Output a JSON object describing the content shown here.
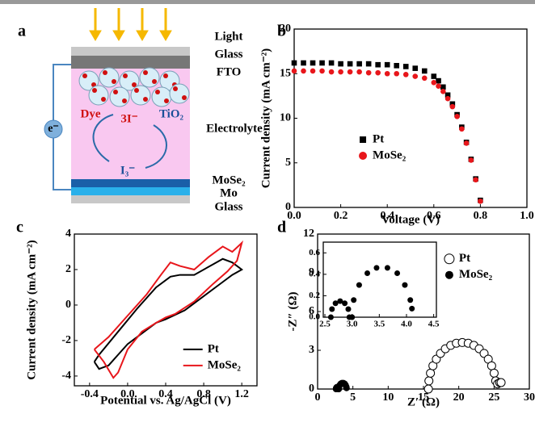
{
  "diagram": {
    "panel_label": "a",
    "light": "Light",
    "glass_top": "Glass",
    "fto": "FTO",
    "dye": "Dye",
    "iodide": "3I⁻",
    "tio2": "TiO₂",
    "electrolyte": "Electrolyte",
    "electron": "e⁻",
    "triiodide": "I₃⁻",
    "mose2": "MoSe₂",
    "mo": "Mo",
    "glass_bottom": "Glass"
  },
  "chart_data": [
    {
      "type": "scatter",
      "panel_label": "b",
      "x_label": "Voltage (V)",
      "y_label": "Current density (mA cm⁻²)",
      "xlim": [
        0,
        1
      ],
      "xticks": [
        {
          "value": 0,
          "label": "0.0"
        },
        0.2,
        0.4,
        0.6,
        0.8,
        {
          "value": 1,
          "label": "1.0"
        }
      ],
      "ylim": [
        0,
        20
      ],
      "yticks": [
        0,
        5,
        10,
        15,
        20
      ],
      "legend": "center left",
      "x": [
        0,
        0.04,
        0.08,
        0.12,
        0.16,
        0.2,
        0.24,
        0.28,
        0.32,
        0.36,
        0.4,
        0.44,
        0.48,
        0.52,
        0.56,
        0.6,
        0.62,
        0.64,
        0.66,
        0.68,
        0.7,
        0.72,
        0.74,
        0.76,
        0.78,
        0.8
      ],
      "series": [
        {
          "name": "Pt",
          "color": "#000000",
          "marker": "square",
          "values": [
            16.2,
            16.2,
            16.2,
            16.2,
            16.2,
            16.1,
            16.1,
            16.1,
            16.1,
            16.0,
            16.0,
            15.9,
            15.8,
            15.6,
            15.3,
            14.7,
            14.2,
            13.5,
            12.6,
            11.6,
            10.4,
            9.0,
            7.3,
            5.4,
            3.2,
            0.8
          ]
        },
        {
          "name": "MoSe₂",
          "color": "#e8161b",
          "marker": "circle",
          "values": [
            15.3,
            15.3,
            15.3,
            15.3,
            15.2,
            15.2,
            15.2,
            15.2,
            15.1,
            15.1,
            15.0,
            15.0,
            14.9,
            14.7,
            14.5,
            14.0,
            13.6,
            13.0,
            12.2,
            11.3,
            10.2,
            8.8,
            7.2,
            5.3,
            3.1,
            0.7
          ]
        }
      ]
    },
    {
      "type": "line",
      "panel_label": "c",
      "x_label": "Potential vs. Ag/AgCl (V)",
      "y_label": "Current density (mA cm⁻²)",
      "xlim": [
        -0.56,
        1.36
      ],
      "xticks": [
        -0.4,
        {
          "value": 0,
          "label": "0.0"
        },
        0.4,
        0.8,
        1.2
      ],
      "ylim": [
        -4.55,
        4
      ],
      "yticks": [
        -4,
        -2,
        0,
        2,
        4
      ],
      "legend": "lower right",
      "series": [
        {
          "name": "Pt",
          "color": "#000000",
          "x": [
            -0.35,
            -0.3,
            -0.1,
            0.1,
            0.3,
            0.45,
            0.55,
            0.7,
            0.9,
            1.0,
            1.1,
            1.2,
            1.1,
            1.0,
            0.8,
            0.6,
            0.4,
            0.3,
            0.2,
            0.0,
            -0.1,
            -0.2,
            -0.3,
            -0.35
          ],
          "values": [
            -3.2,
            -2.8,
            -1.5,
            -0.2,
            1.0,
            1.6,
            1.7,
            1.7,
            2.3,
            2.6,
            2.4,
            2.0,
            1.7,
            1.3,
            0.5,
            -0.3,
            -0.8,
            -1.0,
            -1.4,
            -2.2,
            -2.8,
            -3.4,
            -3.6,
            -3.2
          ]
        },
        {
          "name": "MoSe₂",
          "color": "#e8161b",
          "x": [
            -0.35,
            -0.2,
            0.0,
            0.2,
            0.35,
            0.45,
            0.55,
            0.7,
            0.85,
            1.0,
            1.1,
            1.2,
            1.15,
            1.05,
            0.9,
            0.7,
            0.5,
            0.4,
            0.3,
            0.15,
            0.0,
            -0.1,
            -0.15,
            -0.25,
            -0.35
          ],
          "values": [
            -2.5,
            -1.8,
            -0.6,
            0.6,
            1.7,
            2.4,
            2.2,
            2.0,
            2.7,
            3.3,
            3.0,
            3.5,
            2.5,
            1.9,
            1.2,
            0.2,
            -0.5,
            -0.7,
            -1.0,
            -1.5,
            -2.5,
            -3.8,
            -4.1,
            -3.2,
            -2.5
          ]
        }
      ]
    },
    {
      "type": "scatter",
      "panel_label": "d",
      "x_label": "Z′ (Ω)",
      "y_label": "-Z″ (Ω)",
      "xlim": [
        0,
        30
      ],
      "xticks": [
        0,
        5,
        10,
        15,
        20,
        25,
        30
      ],
      "ylim": [
        0,
        12
      ],
      "yticks": [
        0,
        3,
        6,
        9,
        12
      ],
      "legend": "upper right",
      "series": [
        {
          "name": "Pt",
          "color": "#000000",
          "marker": "open-circle",
          "x": [
            15.7,
            15.77,
            15.99,
            16.34,
            16.82,
            17.41,
            18.1,
            18.86,
            19.66,
            20.5,
            21.34,
            22.14,
            22.9,
            23.59,
            24.18,
            24.66,
            25.01,
            25.23,
            25.5,
            25.8,
            26.0
          ],
          "values": [
            0,
            0.63,
            1.23,
            1.8,
            2.31,
            2.76,
            3.12,
            3.38,
            3.55,
            3.6,
            3.55,
            3.38,
            3.12,
            2.76,
            2.31,
            1.8,
            1.23,
            0.63,
            0.4,
            0.5,
            0.5
          ]
        },
        {
          "name": "MoSe₂",
          "color": "#000000",
          "marker": "circle",
          "x": [
            2.61,
            2.63,
            2.695,
            2.78,
            2.865,
            2.93,
            2.95,
            3.0,
            3.03,
            3.13,
            3.28,
            3.45,
            3.65,
            3.83,
            3.97,
            4.07,
            4.1
          ],
          "values": [
            0,
            0.075,
            0.13,
            0.15,
            0.13,
            0.075,
            0,
            0,
            0.16,
            0.3,
            0.41,
            0.46,
            0.46,
            0.41,
            0.3,
            0.16,
            0.08
          ]
        }
      ]
    },
    {
      "type": "scatter",
      "xlim": [
        2.47,
        4.55
      ],
      "xticks": [
        2.5,
        {
          "value": 3,
          "label": "3.0"
        },
        3.5,
        {
          "value": 4,
          "label": "4.0"
        },
        4.5
      ],
      "ylim": [
        0,
        0.7
      ],
      "yticks": [
        {
          "value": 0,
          "label": "0.0"
        },
        0.2,
        0.4,
        0.6
      ],
      "series": [
        {
          "color": "#000000",
          "marker": "circle",
          "x": [
            2.61,
            2.63,
            2.695,
            2.78,
            2.865,
            2.93,
            2.95,
            3.0,
            3.03,
            3.13,
            3.28,
            3.45,
            3.65,
            3.83,
            3.97,
            4.07,
            4.1
          ],
          "values": [
            0,
            0.075,
            0.13,
            0.15,
            0.13,
            0.075,
            0,
            0,
            0.16,
            0.3,
            0.41,
            0.46,
            0.46,
            0.41,
            0.3,
            0.16,
            0.08
          ]
        }
      ]
    }
  ]
}
